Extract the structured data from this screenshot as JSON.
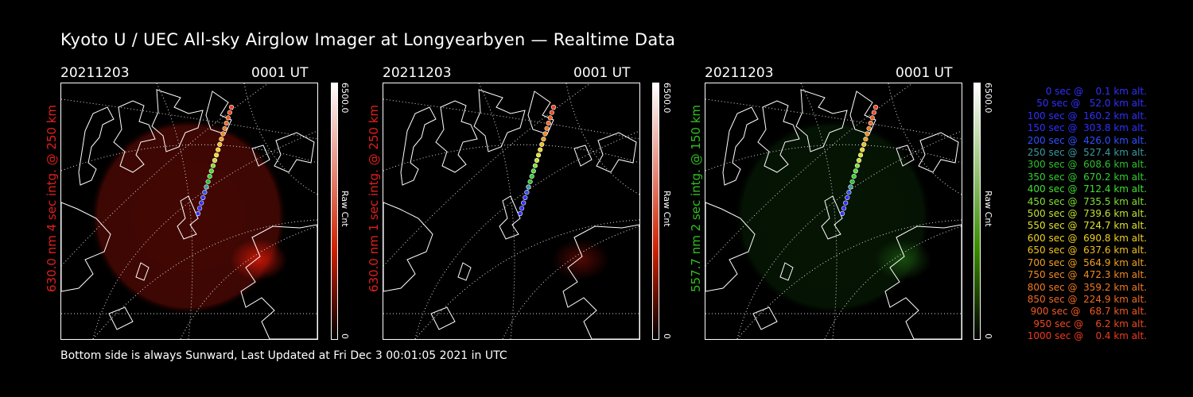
{
  "title": "Kyoto U / UEC All-sky Airglow Imager at Longyearbyen — Realtime Data",
  "footer": "Bottom side is always Sunward, Last Updated at Fri Dec  3 00:01:05 2021 in UTC",
  "panels": [
    {
      "date": "20211203",
      "time": "0001 UT",
      "side_label": "630.0 nm 4 sec intg. @ 250 km",
      "side_color": "#e0201a",
      "cbar_max": "6500.0",
      "cbar_min": "0",
      "cbar_unit": "Raw Cnt",
      "cbar_color": "#d02000",
      "glow": "red-strong"
    },
    {
      "date": "20211203",
      "time": "0001 UT",
      "side_label": "630.0 nm 1 sec intg. @ 250 km",
      "side_color": "#e0201a",
      "cbar_max": "6500.0",
      "cbar_min": "0",
      "cbar_unit": "Raw Cnt",
      "cbar_color": "#d02000",
      "glow": "red-faint"
    },
    {
      "date": "20211203",
      "time": "0001 UT",
      "side_label": "557.7 nm 2 sec intg. @ 150 km",
      "side_color": "#30c020",
      "cbar_max": "6500.0",
      "cbar_min": "0",
      "cbar_unit": "Raw Cnt",
      "cbar_color": "#3a8a00",
      "glow": "green-faint"
    }
  ],
  "legend": [
    {
      "text": "0 sec @    0.1 km alt.",
      "color": "#3030ff"
    },
    {
      "text": "50 sec @   52.0 km alt.",
      "color": "#3030ff"
    },
    {
      "text": "100 sec @  160.2 km alt.",
      "color": "#3030ff"
    },
    {
      "text": "150 sec @  303.8 km alt.",
      "color": "#3030ff"
    },
    {
      "text": "200 sec @  426.0 km alt.",
      "color": "#3050ff"
    },
    {
      "text": "250 sec @  527.4 km alt.",
      "color": "#3a9aa0"
    },
    {
      "text": "300 sec @  608.6 km alt.",
      "color": "#30c030"
    },
    {
      "text": "350 sec @  670.2 km alt.",
      "color": "#30d030"
    },
    {
      "text": "400 sec @  712.4 km alt.",
      "color": "#40e030"
    },
    {
      "text": "450 sec @  735.5 km alt.",
      "color": "#80e030"
    },
    {
      "text": "500 sec @  739.6 km alt.",
      "color": "#c0e030"
    },
    {
      "text": "550 sec @  724.7 km alt.",
      "color": "#e0e030"
    },
    {
      "text": "600 sec @  690.8 km alt.",
      "color": "#f0d020"
    },
    {
      "text": "650 sec @  637.6 km alt.",
      "color": "#f0c020"
    },
    {
      "text": "700 sec @  564.9 km alt.",
      "color": "#f0a020"
    },
    {
      "text": "750 sec @  472.3 km alt.",
      "color": "#f08a20"
    },
    {
      "text": "800 sec @  359.2 km alt.",
      "color": "#f07a20"
    },
    {
      "text": "850 sec @  224.9 km alt.",
      "color": "#f06a20"
    },
    {
      "text": "900 sec @   68.7 km alt.",
      "color": "#f05a20"
    },
    {
      "text": "950 sec @    6.2 km alt.",
      "color": "#f04a20"
    },
    {
      "text": "1000 sec @    0.4 km alt.",
      "color": "#f03a20"
    }
  ]
}
